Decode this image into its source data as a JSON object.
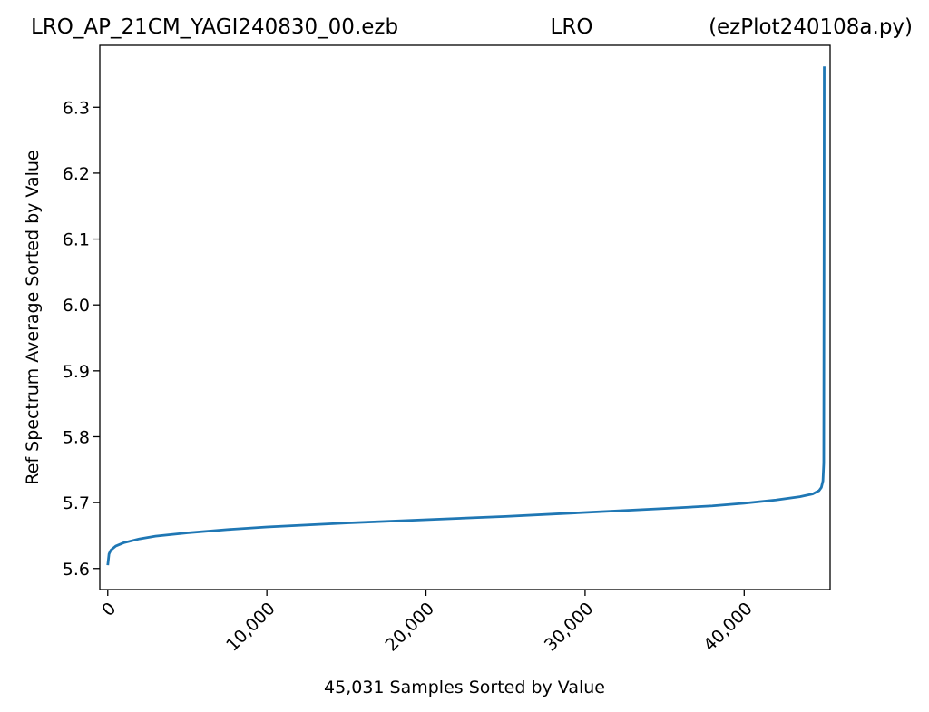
{
  "header": {
    "file_name": "LRO_AP_21CM_YAGI240830_00.ezb",
    "site": "LRO",
    "script": "(ezPlot240108a.py)"
  },
  "chart_data": {
    "type": "line",
    "title": "",
    "xlabel": "45,031 Samples Sorted by Value",
    "ylabel": "Ref Spectrum Average Sorted by Value",
    "xlim": [
      -500,
      45400
    ],
    "ylim": [
      5.568,
      6.394
    ],
    "x_ticks": [
      0,
      10000,
      20000,
      30000,
      40000
    ],
    "x_tick_labels": [
      "0",
      "10,000",
      "20,000",
      "30,000",
      "40,000"
    ],
    "y_ticks": [
      5.6,
      5.7,
      5.8,
      5.9,
      6.0,
      6.1,
      6.2,
      6.3
    ],
    "y_tick_labels": [
      "5.6",
      "5.7",
      "5.8",
      "5.9",
      "6.0",
      "6.1",
      "6.2",
      "6.3"
    ],
    "grid": false,
    "line_color": "#1f77b4",
    "series": [
      {
        "x": [
          0,
          80,
          200,
          500,
          1000,
          2000,
          3000,
          5000,
          7500,
          10000,
          15000,
          20000,
          25000,
          30000,
          35000,
          38000,
          40000,
          42000,
          43500,
          44300,
          44700,
          44850,
          44950,
          45000,
          45020,
          45031
        ],
        "y": [
          5.605,
          5.622,
          5.628,
          5.634,
          5.639,
          5.645,
          5.649,
          5.654,
          5.659,
          5.663,
          5.669,
          5.674,
          5.679,
          5.685,
          5.691,
          5.695,
          5.699,
          5.704,
          5.709,
          5.713,
          5.718,
          5.723,
          5.733,
          5.76,
          6.1,
          6.362
        ]
      }
    ]
  }
}
